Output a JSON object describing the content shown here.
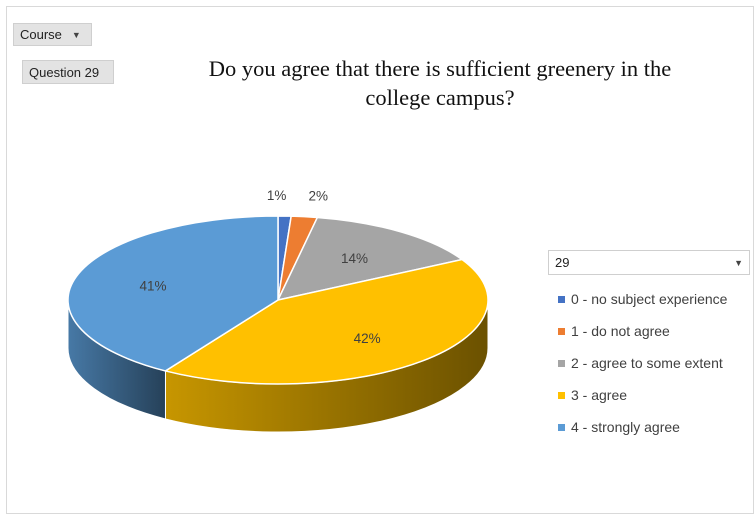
{
  "filters": {
    "course_label": "Course",
    "question_label": "Question 29"
  },
  "chart_data": {
    "type": "pie",
    "style": "3d",
    "title": "Do you agree that there is sufficient greenery in the college campus?",
    "title_lines": [
      "Do you agree that there is sufficient greenery in the",
      "college campus?"
    ],
    "legend_header": "29",
    "legend_position": "right",
    "slices": [
      {
        "label": "0 - no subject experience",
        "value": 1,
        "data_label": "1%",
        "color": "#4472c4"
      },
      {
        "label": "1 - do not agree",
        "value": 2,
        "data_label": "2%",
        "color": "#ed7d31"
      },
      {
        "label": "2 - agree to some extent",
        "value": 14,
        "data_label": "14%",
        "color": "#a5a5a5"
      },
      {
        "label": "3 - agree",
        "value": 42,
        "data_label": "42%",
        "color": "#ffc000"
      },
      {
        "label": "4 - strongly agree",
        "value": 41,
        "data_label": "41%",
        "color": "#5b9bd5"
      }
    ]
  }
}
